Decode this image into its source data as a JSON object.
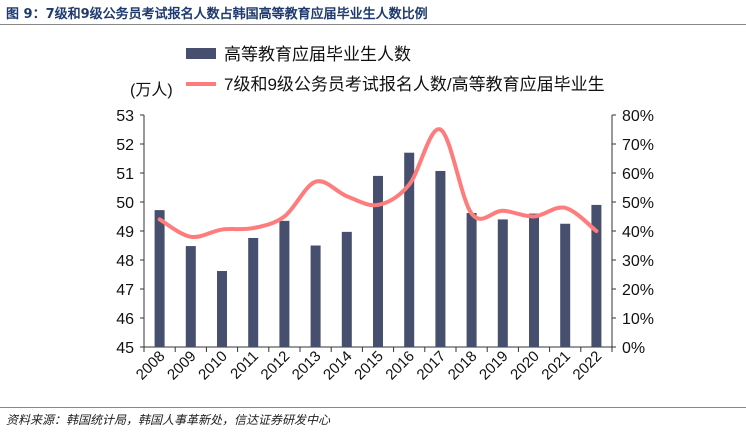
{
  "title": "图 9：7级和9级公务员考试报名人数占韩国高等教育应届毕业生人数比例",
  "source": "资料来源：韩国统计局，韩国人事革新处，信达证券研发中心",
  "chart_data": {
    "type": "bar+line",
    "categories": [
      "2008",
      "2009",
      "2010",
      "2011",
      "2012",
      "2013",
      "2014",
      "2015",
      "2016",
      "2017",
      "2018",
      "2019",
      "2020",
      "2021",
      "2022"
    ],
    "series": [
      {
        "name": "高等教育应届毕业生人数",
        "type": "bar",
        "axis": "left",
        "color": "#464f6e",
        "values": [
          49.72,
          48.48,
          47.62,
          48.76,
          49.35,
          48.5,
          48.97,
          50.9,
          51.7,
          51.07,
          49.62,
          49.4,
          49.6,
          49.25,
          49.9
        ]
      },
      {
        "name": "7级和9级公务员考试报名人数/高等教育应届毕业生",
        "type": "line",
        "axis": "right",
        "color": "#ff7c7c",
        "values": [
          44,
          38,
          40.5,
          41,
          45,
          57,
          52,
          49,
          56,
          75,
          46,
          47,
          45,
          48,
          40
        ]
      }
    ],
    "left_axis": {
      "label": "(万人)",
      "min": 45,
      "max": 53,
      "ticks": [
        "45",
        "46",
        "47",
        "48",
        "49",
        "50",
        "51",
        "52",
        "53"
      ]
    },
    "right_axis": {
      "min": 0,
      "max": 80,
      "ticks": [
        "0%",
        "10%",
        "20%",
        "30%",
        "40%",
        "50%",
        "60%",
        "70%",
        "80%"
      ]
    },
    "legend": "top",
    "grid": false
  }
}
